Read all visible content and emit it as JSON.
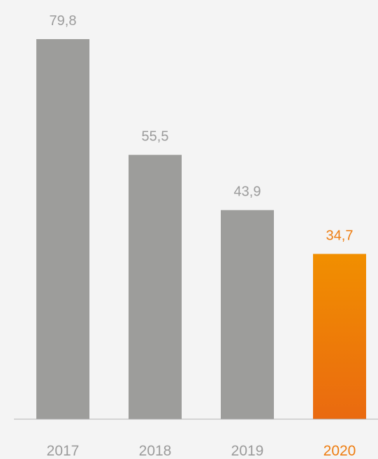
{
  "chart_data": {
    "type": "bar",
    "title": "",
    "xlabel": "",
    "ylabel": "",
    "categories": [
      "2017",
      "2018",
      "2019",
      "2020"
    ],
    "values": [
      79.8,
      55.5,
      43.9,
      34.7
    ],
    "value_labels": [
      "79,8",
      "55,5",
      "43,9",
      "34,7"
    ],
    "ylim": [
      0,
      79.8
    ],
    "grid": false,
    "highlight_index": 3,
    "colors": {
      "bar": "#9d9d9b",
      "highlight_top": "#f18f00",
      "highlight_bottom": "#ea6a10",
      "highlight_text": "#ee7d11",
      "label": "#9b9b9b",
      "axis": "#b4b4b4",
      "background": "#f4f4f4"
    }
  }
}
